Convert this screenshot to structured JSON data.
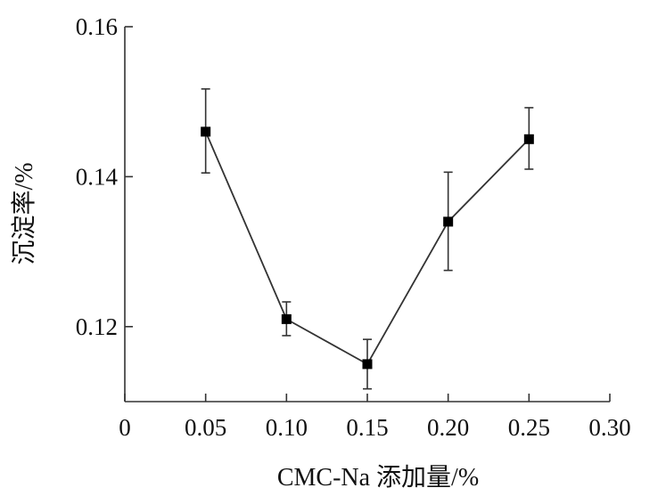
{
  "chart_data": {
    "type": "line",
    "xlabel": "CMC-Na 添加量/%",
    "ylabel": "沉淀率/%",
    "xlim": [
      0,
      0.3
    ],
    "ylim": [
      0.11,
      0.16
    ],
    "x_ticks": [
      "0",
      "0.05",
      "0.10",
      "0.15",
      "0.20",
      "0.25",
      "0.30"
    ],
    "y_ticks": [
      "0.12",
      "0.14",
      "0.16"
    ],
    "grid": false,
    "series": [
      {
        "x": [
          0.05,
          0.1,
          0.15,
          0.2,
          0.25
        ],
        "y": [
          0.146,
          0.121,
          0.115,
          0.134,
          0.145
        ],
        "error_low": [
          0.1405,
          0.1188,
          0.1117,
          0.1275,
          0.141
        ],
        "error_high": [
          0.1517,
          0.1233,
          0.1183,
          0.1406,
          0.1492
        ],
        "marker": "square",
        "color": "#333333"
      }
    ]
  }
}
